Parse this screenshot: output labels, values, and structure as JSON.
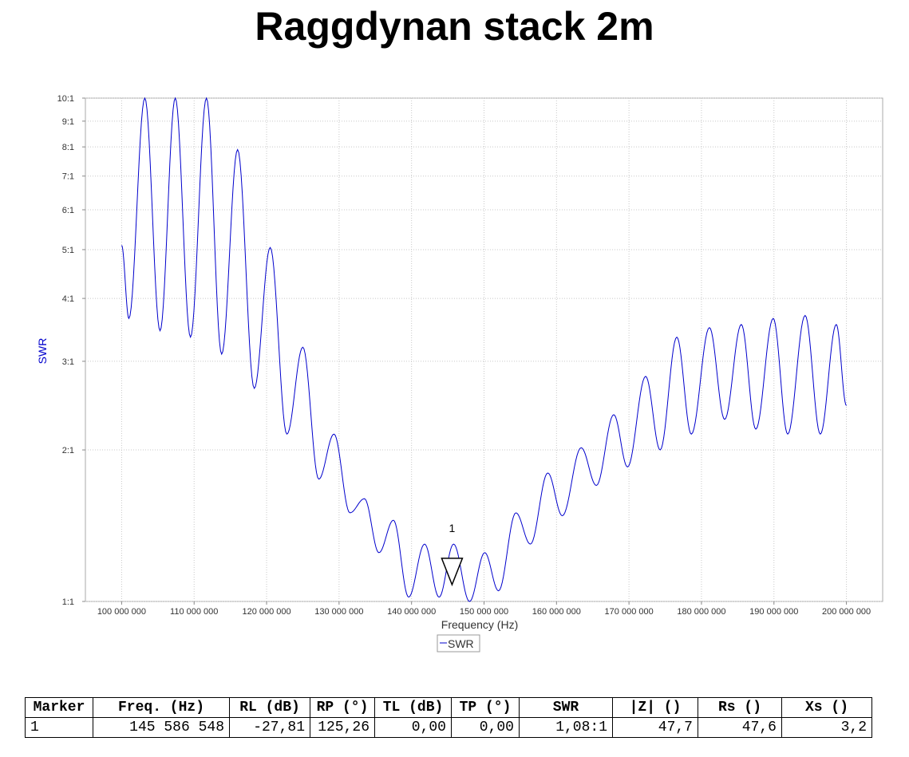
{
  "title": "Raggdynan stack 2m",
  "chart_data": {
    "type": "line",
    "title": "Raggdynan stack 2m",
    "xlabel": "Frequency (Hz)",
    "ylabel": "SWR",
    "xlim": [
      95000000,
      205000000
    ],
    "ylim": [
      1,
      10
    ],
    "yscale": "log",
    "grid": true,
    "line_color": "#0000cc",
    "x_ticks": [
      100000000,
      110000000,
      120000000,
      130000000,
      140000000,
      150000000,
      160000000,
      170000000,
      180000000,
      190000000,
      200000000
    ],
    "x_tick_labels": [
      "100 000 000",
      "110 000 000",
      "120 000 000",
      "130 000 000",
      "140 000 000",
      "150 000 000",
      "160 000 000",
      "170 000 000",
      "180 000 000",
      "190 000 000",
      "200 000 000"
    ],
    "y_ticks": [
      1,
      2,
      3,
      4,
      5,
      6,
      7,
      8,
      9,
      10
    ],
    "y_tick_labels": [
      "1:1",
      "2:1",
      "3:1",
      "4:1",
      "5:1",
      "6:1",
      "7:1",
      "8:1",
      "9:1",
      "10:1"
    ],
    "legend": {
      "label": "SWR",
      "position": "bottom"
    },
    "series": [
      {
        "name": "SWR",
        "extrema": [
          [
            100000000,
            5.1
          ],
          [
            101000000,
            3.65
          ],
          [
            103200000,
            10
          ],
          [
            105300000,
            3.45
          ],
          [
            107400000,
            10
          ],
          [
            109500000,
            3.35
          ],
          [
            111700000,
            10
          ],
          [
            113800000,
            3.1
          ],
          [
            116000000,
            7.9
          ],
          [
            118300000,
            2.65
          ],
          [
            120500000,
            5.05
          ],
          [
            122800000,
            2.15
          ],
          [
            125000000,
            3.2
          ],
          [
            127200000,
            1.75
          ],
          [
            129300000,
            2.15
          ],
          [
            131500000,
            1.5
          ],
          [
            133500000,
            1.6
          ],
          [
            135500000,
            1.25
          ],
          [
            137500000,
            1.45
          ],
          [
            139600000,
            1.02
          ],
          [
            141800000,
            1.3
          ],
          [
            143800000,
            1.02
          ],
          [
            145800000,
            1.3
          ],
          [
            148000000,
            1.0
          ],
          [
            150100000,
            1.25
          ],
          [
            152000000,
            1.05
          ],
          [
            154400000,
            1.5
          ],
          [
            156400000,
            1.3
          ],
          [
            158800000,
            1.8
          ],
          [
            160800000,
            1.48
          ],
          [
            163400000,
            2.02
          ],
          [
            165500000,
            1.7
          ],
          [
            167900000,
            2.35
          ],
          [
            169800000,
            1.85
          ],
          [
            172300000,
            2.8
          ],
          [
            174300000,
            2.0
          ],
          [
            176600000,
            3.35
          ],
          [
            178600000,
            2.15
          ],
          [
            181100000,
            3.5
          ],
          [
            183200000,
            2.3
          ],
          [
            185500000,
            3.55
          ],
          [
            187500000,
            2.2
          ],
          [
            189900000,
            3.65
          ],
          [
            191900000,
            2.15
          ],
          [
            194300000,
            3.7
          ],
          [
            196400000,
            2.15
          ],
          [
            198600000,
            3.55
          ],
          [
            200000000,
            2.45
          ]
        ]
      }
    ],
    "markers": [
      {
        "label": "1",
        "x": 145586548,
        "y": 1.08
      }
    ]
  },
  "table": {
    "headers": [
      "Marker",
      "Freq. (Hz)",
      "RL (dB)",
      "RP (°)",
      "TL (dB)",
      "TP (°)",
      "SWR",
      "|Z| ()",
      "Rs ()",
      "Xs ()"
    ],
    "rows": [
      [
        "1",
        "145 586 548",
        "-27,81",
        "125,26",
        "0,00",
        "0,00",
        "1,08:1",
        "47,7",
        "47,6",
        "3,2"
      ]
    ]
  }
}
